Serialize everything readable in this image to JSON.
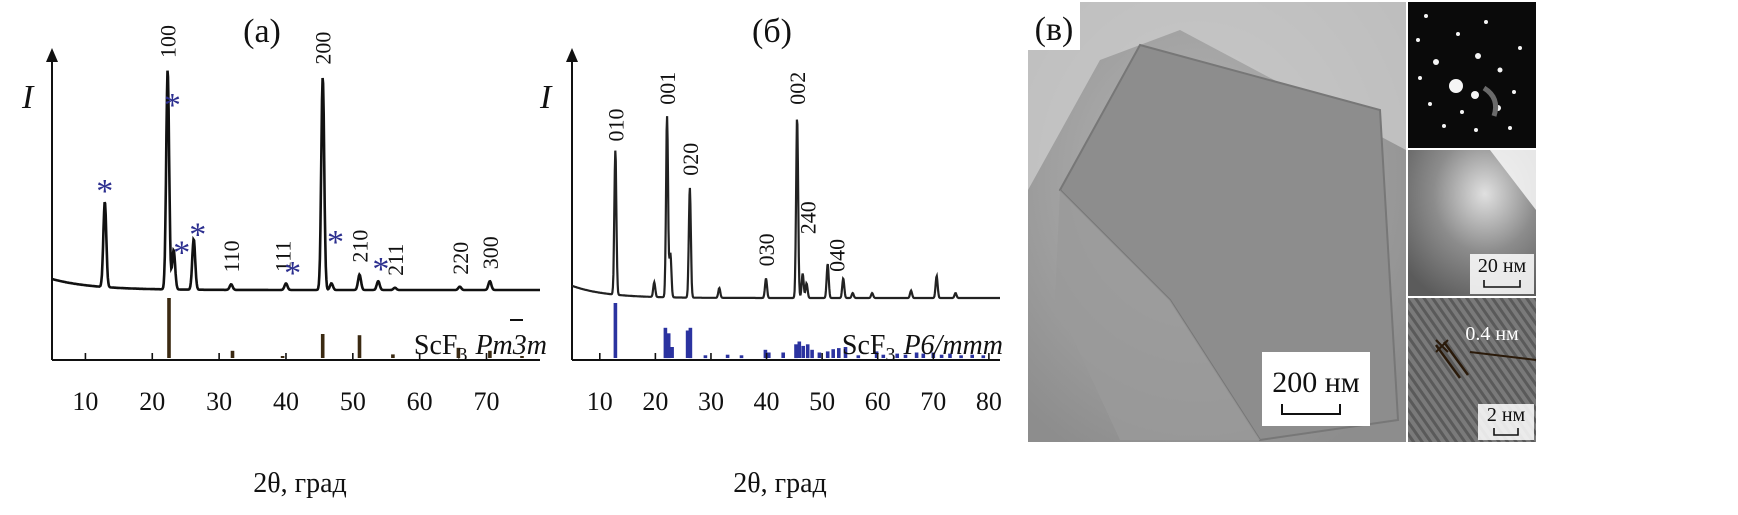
{
  "panels": {
    "a": {
      "label": "(а)",
      "y_symbol": "I",
      "xlabel": "2θ, град",
      "phase_prefix": "ScF",
      "phase_sub": "3",
      "phase_group": "Pm3m"
    },
    "b": {
      "label": "(б)",
      "y_symbol": "I",
      "xlabel": "2θ, град",
      "phase_prefix": "ScF",
      "phase_sub": "3",
      "phase_group": "P6/mmm"
    },
    "c": {
      "label": "(в)",
      "scale_main": "200 нм",
      "scale_mid": "20 нм",
      "scale_small": "2 нм",
      "d_spacing": "0.4 нм"
    }
  },
  "chart_data": [
    {
      "type": "line",
      "title": "(а)",
      "xlabel": "2θ, град",
      "ylabel": "I",
      "xlim": [
        5,
        78
      ],
      "xticks": [
        10,
        20,
        30,
        40,
        50,
        60,
        70
      ],
      "peaks": [
        {
          "x": 12.9,
          "h": 0.39
        },
        {
          "x": 22.3,
          "h": 1.0
        },
        {
          "x": 23.2,
          "h": 0.18
        },
        {
          "x": 26.2,
          "h": 0.23
        },
        {
          "x": 31.8,
          "h": 0.025
        },
        {
          "x": 40.0,
          "h": 0.03
        },
        {
          "x": 45.5,
          "h": 0.97
        },
        {
          "x": 46.8,
          "h": 0.03
        },
        {
          "x": 51.0,
          "h": 0.07
        },
        {
          "x": 53.8,
          "h": 0.04
        },
        {
          "x": 56.3,
          "h": 0.01
        },
        {
          "x": 66.0,
          "h": 0.015
        },
        {
          "x": 70.5,
          "h": 0.04
        }
      ],
      "peak_labels": [
        {
          "x": 22.3,
          "text": "100"
        },
        {
          "x": 45.5,
          "text": "200"
        },
        {
          "x": 31.8,
          "text": "110"
        },
        {
          "x": 39.5,
          "text": "111"
        },
        {
          "x": 51.0,
          "text": "210"
        },
        {
          "x": 56.3,
          "text": "211"
        },
        {
          "x": 66.0,
          "text": "220"
        },
        {
          "x": 70.5,
          "text": "300"
        }
      ],
      "impurity_markers": [
        {
          "x": 12.9,
          "text": "*"
        },
        {
          "x": 23.0,
          "text": "*"
        },
        {
          "x": 24.4,
          "text": "*"
        },
        {
          "x": 26.8,
          "text": "*"
        },
        {
          "x": 41.0,
          "text": "*"
        },
        {
          "x": 47.4,
          "text": "*"
        },
        {
          "x": 54.2,
          "text": "*"
        }
      ],
      "reference_bars": [
        {
          "x": 22.5,
          "h": 1.0
        },
        {
          "x": 32.0,
          "h": 0.12
        },
        {
          "x": 39.5,
          "h": 0.03
        },
        {
          "x": 45.5,
          "h": 0.4
        },
        {
          "x": 51.0,
          "h": 0.38
        },
        {
          "x": 56.0,
          "h": 0.06
        },
        {
          "x": 65.8,
          "h": 0.17
        },
        {
          "x": 70.5,
          "h": 0.12
        },
        {
          "x": 75.3,
          "h": 0.03
        }
      ],
      "reference_color": "#3b2a12",
      "pattern_color": "#111111"
    },
    {
      "type": "line",
      "title": "(б)",
      "xlabel": "2θ, град",
      "ylabel": "I",
      "xlim": [
        5,
        82
      ],
      "xticks": [
        10,
        20,
        30,
        40,
        50,
        60,
        70,
        80
      ],
      "peaks": [
        {
          "x": 12.8,
          "h": 0.59
        },
        {
          "x": 19.8,
          "h": 0.06
        },
        {
          "x": 22.1,
          "h": 0.74
        },
        {
          "x": 22.7,
          "h": 0.18
        },
        {
          "x": 26.2,
          "h": 0.45
        },
        {
          "x": 31.5,
          "h": 0.04
        },
        {
          "x": 39.9,
          "h": 0.08
        },
        {
          "x": 45.5,
          "h": 0.74
        },
        {
          "x": 46.5,
          "h": 0.1
        },
        {
          "x": 47.2,
          "h": 0.06
        },
        {
          "x": 51.0,
          "h": 0.14
        },
        {
          "x": 53.8,
          "h": 0.08
        },
        {
          "x": 55.5,
          "h": 0.02
        },
        {
          "x": 59.0,
          "h": 0.02
        },
        {
          "x": 66.0,
          "h": 0.03
        },
        {
          "x": 70.6,
          "h": 0.09
        },
        {
          "x": 74.0,
          "h": 0.02
        }
      ],
      "peak_labels": [
        {
          "x": 12.8,
          "text": "010"
        },
        {
          "x": 22.1,
          "text": "001"
        },
        {
          "x": 26.2,
          "text": "020"
        },
        {
          "x": 39.9,
          "text": "030"
        },
        {
          "x": 45.5,
          "text": "002"
        },
        {
          "x": 47.4,
          "text": "240"
        },
        {
          "x": 52.6,
          "text": "040"
        }
      ],
      "reference_bars": [
        {
          "x": 12.8,
          "h": 1.0
        },
        {
          "x": 21.8,
          "h": 0.55
        },
        {
          "x": 22.4,
          "h": 0.45
        },
        {
          "x": 23.0,
          "h": 0.2
        },
        {
          "x": 25.8,
          "h": 0.5
        },
        {
          "x": 26.3,
          "h": 0.55
        },
        {
          "x": 29.0,
          "h": 0.05
        },
        {
          "x": 33.0,
          "h": 0.06
        },
        {
          "x": 35.5,
          "h": 0.05
        },
        {
          "x": 39.8,
          "h": 0.15
        },
        {
          "x": 40.4,
          "h": 0.1
        },
        {
          "x": 43.0,
          "h": 0.1
        },
        {
          "x": 45.3,
          "h": 0.25
        },
        {
          "x": 45.9,
          "h": 0.3
        },
        {
          "x": 46.6,
          "h": 0.22
        },
        {
          "x": 47.4,
          "h": 0.25
        },
        {
          "x": 48.2,
          "h": 0.15
        },
        {
          "x": 49.5,
          "h": 0.1
        },
        {
          "x": 51.0,
          "h": 0.12
        },
        {
          "x": 52.0,
          "h": 0.16
        },
        {
          "x": 53.0,
          "h": 0.18
        },
        {
          "x": 54.2,
          "h": 0.2
        },
        {
          "x": 56.5,
          "h": 0.05
        },
        {
          "x": 59.8,
          "h": 0.12
        },
        {
          "x": 61.0,
          "h": 0.06
        },
        {
          "x": 63.5,
          "h": 0.08
        },
        {
          "x": 65.0,
          "h": 0.06
        },
        {
          "x": 67.0,
          "h": 0.1
        },
        {
          "x": 68.2,
          "h": 0.08
        },
        {
          "x": 70.0,
          "h": 0.1
        },
        {
          "x": 71.5,
          "h": 0.06
        },
        {
          "x": 73.0,
          "h": 0.08
        },
        {
          "x": 75.0,
          "h": 0.05
        },
        {
          "x": 77.0,
          "h": 0.06
        },
        {
          "x": 79.0,
          "h": 0.05
        }
      ],
      "reference_color": "#2b33a0",
      "pattern_color": "#222222"
    }
  ]
}
